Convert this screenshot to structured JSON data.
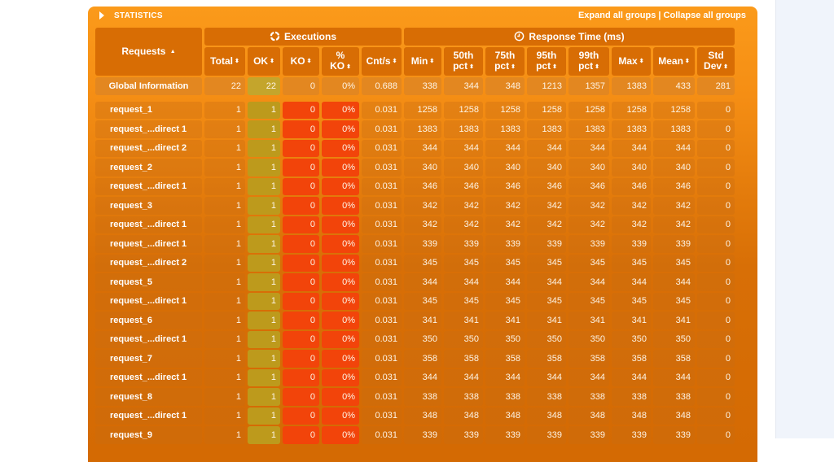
{
  "panel": {
    "title": "STATISTICS",
    "expand_label": "Expand all groups",
    "separator": "|",
    "collapse_label": "Collapse all groups"
  },
  "header": {
    "requests": "Requests",
    "executions_group": "Executions",
    "response_time_group": "Response Time (ms)",
    "columns": {
      "total": "Total",
      "ok": "OK",
      "ko": "KO",
      "pct_ko_1": "%",
      "pct_ko_2": "KO",
      "cnt": "Cnt/s",
      "min": "Min",
      "p50_1": "50th",
      "p50_2": "pct",
      "p75_1": "75th",
      "p75_2": "pct",
      "p95_1": "95th",
      "p95_2": "pct",
      "p99_1": "99th",
      "p99_2": "pct",
      "max": "Max",
      "mean": "Mean",
      "std_1": "Std",
      "std_2": "Dev"
    },
    "sort_asc_icon": "▲",
    "sort_icon": "⬍"
  },
  "global": {
    "name": "Global Information",
    "total": "22",
    "ok": "22",
    "ko": "0",
    "pct_ko": "0%",
    "cnt": "0.688",
    "min": "338",
    "p50": "344",
    "p75": "348",
    "p95": "1213",
    "p99": "1357",
    "max": "1383",
    "mean": "433",
    "std": "281"
  },
  "rows": [
    {
      "name": "request_1",
      "total": "1",
      "ok": "1",
      "ko": "0",
      "pct_ko": "0%",
      "cnt": "0.031",
      "min": "1258",
      "p50": "1258",
      "p75": "1258",
      "p95": "1258",
      "p99": "1258",
      "max": "1258",
      "mean": "1258",
      "std": "0"
    },
    {
      "name": "request_...direct 1",
      "total": "1",
      "ok": "1",
      "ko": "0",
      "pct_ko": "0%",
      "cnt": "0.031",
      "min": "1383",
      "p50": "1383",
      "p75": "1383",
      "p95": "1383",
      "p99": "1383",
      "max": "1383",
      "mean": "1383",
      "std": "0"
    },
    {
      "name": "request_...direct 2",
      "total": "1",
      "ok": "1",
      "ko": "0",
      "pct_ko": "0%",
      "cnt": "0.031",
      "min": "344",
      "p50": "344",
      "p75": "344",
      "p95": "344",
      "p99": "344",
      "max": "344",
      "mean": "344",
      "std": "0"
    },
    {
      "name": "request_2",
      "total": "1",
      "ok": "1",
      "ko": "0",
      "pct_ko": "0%",
      "cnt": "0.031",
      "min": "340",
      "p50": "340",
      "p75": "340",
      "p95": "340",
      "p99": "340",
      "max": "340",
      "mean": "340",
      "std": "0"
    },
    {
      "name": "request_...direct 1",
      "total": "1",
      "ok": "1",
      "ko": "0",
      "pct_ko": "0%",
      "cnt": "0.031",
      "min": "346",
      "p50": "346",
      "p75": "346",
      "p95": "346",
      "p99": "346",
      "max": "346",
      "mean": "346",
      "std": "0"
    },
    {
      "name": "request_3",
      "total": "1",
      "ok": "1",
      "ko": "0",
      "pct_ko": "0%",
      "cnt": "0.031",
      "min": "342",
      "p50": "342",
      "p75": "342",
      "p95": "342",
      "p99": "342",
      "max": "342",
      "mean": "342",
      "std": "0"
    },
    {
      "name": "request_...direct 1",
      "total": "1",
      "ok": "1",
      "ko": "0",
      "pct_ko": "0%",
      "cnt": "0.031",
      "min": "342",
      "p50": "342",
      "p75": "342",
      "p95": "342",
      "p99": "342",
      "max": "342",
      "mean": "342",
      "std": "0"
    },
    {
      "name": "request_...direct 1",
      "total": "1",
      "ok": "1",
      "ko": "0",
      "pct_ko": "0%",
      "cnt": "0.031",
      "min": "339",
      "p50": "339",
      "p75": "339",
      "p95": "339",
      "p99": "339",
      "max": "339",
      "mean": "339",
      "std": "0"
    },
    {
      "name": "request_...direct 2",
      "total": "1",
      "ok": "1",
      "ko": "0",
      "pct_ko": "0%",
      "cnt": "0.031",
      "min": "345",
      "p50": "345",
      "p75": "345",
      "p95": "345",
      "p99": "345",
      "max": "345",
      "mean": "345",
      "std": "0"
    },
    {
      "name": "request_5",
      "total": "1",
      "ok": "1",
      "ko": "0",
      "pct_ko": "0%",
      "cnt": "0.031",
      "min": "344",
      "p50": "344",
      "p75": "344",
      "p95": "344",
      "p99": "344",
      "max": "344",
      "mean": "344",
      "std": "0"
    },
    {
      "name": "request_...direct 1",
      "total": "1",
      "ok": "1",
      "ko": "0",
      "pct_ko": "0%",
      "cnt": "0.031",
      "min": "345",
      "p50": "345",
      "p75": "345",
      "p95": "345",
      "p99": "345",
      "max": "345",
      "mean": "345",
      "std": "0"
    },
    {
      "name": "request_6",
      "total": "1",
      "ok": "1",
      "ko": "0",
      "pct_ko": "0%",
      "cnt": "0.031",
      "min": "341",
      "p50": "341",
      "p75": "341",
      "p95": "341",
      "p99": "341",
      "max": "341",
      "mean": "341",
      "std": "0"
    },
    {
      "name": "request_...direct 1",
      "total": "1",
      "ok": "1",
      "ko": "0",
      "pct_ko": "0%",
      "cnt": "0.031",
      "min": "350",
      "p50": "350",
      "p75": "350",
      "p95": "350",
      "p99": "350",
      "max": "350",
      "mean": "350",
      "std": "0"
    },
    {
      "name": "request_7",
      "total": "1",
      "ok": "1",
      "ko": "0",
      "pct_ko": "0%",
      "cnt": "0.031",
      "min": "358",
      "p50": "358",
      "p75": "358",
      "p95": "358",
      "p99": "358",
      "max": "358",
      "mean": "358",
      "std": "0"
    },
    {
      "name": "request_...direct 1",
      "total": "1",
      "ok": "1",
      "ko": "0",
      "pct_ko": "0%",
      "cnt": "0.031",
      "min": "344",
      "p50": "344",
      "p75": "344",
      "p95": "344",
      "p99": "344",
      "max": "344",
      "mean": "344",
      "std": "0"
    },
    {
      "name": "request_8",
      "total": "1",
      "ok": "1",
      "ko": "0",
      "pct_ko": "0%",
      "cnt": "0.031",
      "min": "338",
      "p50": "338",
      "p75": "338",
      "p95": "338",
      "p99": "338",
      "max": "338",
      "mean": "338",
      "std": "0"
    },
    {
      "name": "request_...direct 1",
      "total": "1",
      "ok": "1",
      "ko": "0",
      "pct_ko": "0%",
      "cnt": "0.031",
      "min": "348",
      "p50": "348",
      "p75": "348",
      "p95": "348",
      "p99": "348",
      "max": "348",
      "mean": "348",
      "std": "0"
    },
    {
      "name": "request_9",
      "total": "1",
      "ok": "1",
      "ko": "0",
      "pct_ko": "0%",
      "cnt": "0.031",
      "min": "339",
      "p50": "339",
      "p75": "339",
      "p95": "339",
      "p99": "339",
      "max": "339",
      "mean": "339",
      "std": "0"
    }
  ],
  "colors": {
    "panel": "#fb9a1a",
    "header_cell": "#d86d04",
    "ok_cell": "#bd9a1c",
    "ko_cell": "#f2440a",
    "right_pane": "#f0f4fb"
  }
}
